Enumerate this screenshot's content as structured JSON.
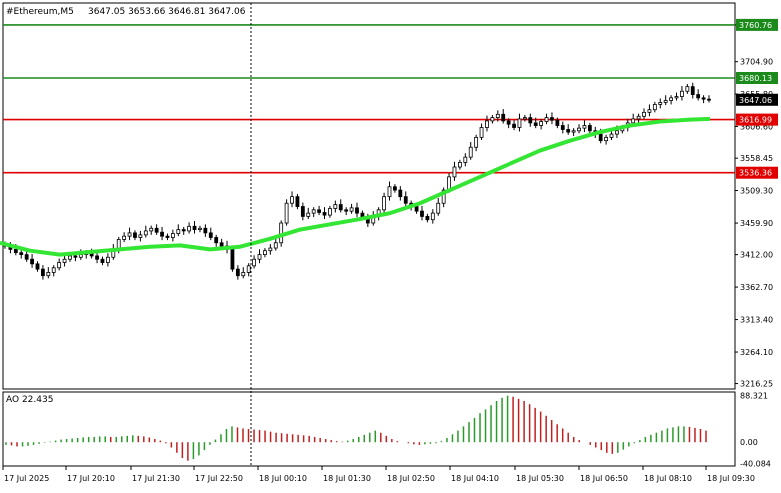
{
  "header": {
    "symbol": "#Ethereum,M5",
    "ohlc": "3647.05 3653.66 3646.81 3647.06"
  },
  "colors": {
    "bull": "#000000",
    "ma": "#33e633",
    "support_line": "#e00000",
    "resistance_line": "#1b8a1b",
    "ao_up": "#2a9a2a",
    "ao_down": "#c02020"
  },
  "chart_data": [
    {
      "type": "candlestick",
      "title": "",
      "y_ticks": [
        "3760.76",
        "3704.90",
        "3655.80",
        "3606.60",
        "3558.45",
        "3509.30",
        "3459.90",
        "3412.00",
        "3362.70",
        "3313.40",
        "3264.10",
        "3216.25"
      ],
      "ylim": [
        3208,
        3794
      ],
      "current_price": "3647.06",
      "horizontal_levels": [
        {
          "value": 3760.76,
          "label": "3760.76",
          "color": "green"
        },
        {
          "value": 3680.13,
          "label": "3680.13",
          "color": "green"
        },
        {
          "value": 3616.99,
          "label": "3616.99",
          "color": "red"
        },
        {
          "value": 3536.36,
          "label": "3536.36",
          "color": "red"
        }
      ],
      "candle_closes": [
        3425,
        3420,
        3415,
        3412,
        3405,
        3398,
        3390,
        3380,
        3385,
        3392,
        3400,
        3405,
        3410,
        3408,
        3412,
        3415,
        3410,
        3405,
        3400,
        3408,
        3420,
        3435,
        3440,
        3445,
        3438,
        3442,
        3448,
        3452,
        3446,
        3440,
        3438,
        3444,
        3450,
        3448,
        3455,
        3450,
        3452,
        3445,
        3438,
        3430,
        3425,
        3420,
        3390,
        3380,
        3385,
        3395,
        3405,
        3412,
        3418,
        3422,
        3430,
        3460,
        3490,
        3500,
        3485,
        3470,
        3475,
        3480,
        3476,
        3472,
        3482,
        3488,
        3480,
        3478,
        3483,
        3475,
        3468,
        3460,
        3470,
        3480,
        3500,
        3515,
        3510,
        3500,
        3490,
        3485,
        3478,
        3470,
        3465,
        3475,
        3490,
        3510,
        3530,
        3545,
        3552,
        3560,
        3575,
        3590,
        3605,
        3615,
        3620,
        3625,
        3615,
        3610,
        3605,
        3618,
        3620,
        3612,
        3608,
        3614,
        3620,
        3616,
        3608,
        3602,
        3598,
        3600,
        3604,
        3608,
        3600,
        3595,
        3585,
        3590,
        3595,
        3600,
        3605,
        3612,
        3618,
        3622,
        3628,
        3632,
        3640,
        3643,
        3646,
        3650,
        3652,
        3660,
        3667,
        3655,
        3650,
        3648,
        3647
      ],
      "ma_points": [
        [
          0,
          3430
        ],
        [
          30,
          3418
        ],
        [
          60,
          3412
        ],
        [
          90,
          3416
        ],
        [
          120,
          3420
        ],
        [
          150,
          3424
        ],
        [
          180,
          3426
        ],
        [
          210,
          3420
        ],
        [
          240,
          3424
        ],
        [
          270,
          3436
        ],
        [
          300,
          3450
        ],
        [
          330,
          3458
        ],
        [
          360,
          3466
        ],
        [
          390,
          3475
        ],
        [
          420,
          3490
        ],
        [
          450,
          3510
        ],
        [
          480,
          3530
        ],
        [
          510,
          3550
        ],
        [
          540,
          3570
        ],
        [
          570,
          3585
        ],
        [
          600,
          3598
        ],
        [
          630,
          3608
        ],
        [
          660,
          3614
        ],
        [
          690,
          3617
        ],
        [
          710,
          3618
        ]
      ],
      "ao": {
        "label": "AO 22.435",
        "ticks": [
          "88.321",
          "0.00",
          "-40.084"
        ],
        "ylim": [
          -45,
          95
        ],
        "values": [
          -5,
          -6,
          -8,
          -8,
          -7,
          -5,
          -3,
          -1,
          1,
          3,
          5,
          6,
          7,
          8,
          9,
          10,
          10,
          11,
          11,
          10,
          10,
          11,
          12,
          13,
          12,
          11,
          9,
          6,
          3,
          -2,
          -10,
          -20,
          -30,
          -35,
          -32,
          -25,
          -15,
          -5,
          5,
          15,
          25,
          30,
          28,
          26,
          25,
          24,
          23,
          22,
          20,
          18,
          17,
          16,
          15,
          14,
          13,
          12,
          10,
          8,
          6,
          4,
          2,
          1,
          3,
          6,
          10,
          14,
          18,
          22,
          18,
          12,
          6,
          2,
          0,
          -2,
          -4,
          -5,
          -4,
          -3,
          -2,
          2,
          8,
          15,
          22,
          30,
          38,
          46,
          55,
          62,
          70,
          78,
          84,
          88,
          86,
          82,
          78,
          72,
          65,
          58,
          50,
          42,
          34,
          26,
          18,
          10,
          4,
          0,
          -5,
          -10,
          -15,
          -20,
          -22,
          -20,
          -14,
          -8,
          -2,
          4,
          10,
          14,
          18,
          22,
          26,
          28,
          30,
          30,
          29,
          27,
          25,
          22
        ],
        "value": 22.435
      },
      "x_ticks": [
        "17 Jul 2025",
        "17 Jul 20:10",
        "17 Jul 21:30",
        "17 Jul 22:50",
        "18 Jul 00:10",
        "18 Jul 01:30",
        "18 Jul 02:50",
        "18 Jul 04:10",
        "18 Jul 05:30",
        "18 Jul 06:50",
        "18 Jul 08:10",
        "18 Jul 09:30"
      ],
      "grid": false
    }
  ]
}
